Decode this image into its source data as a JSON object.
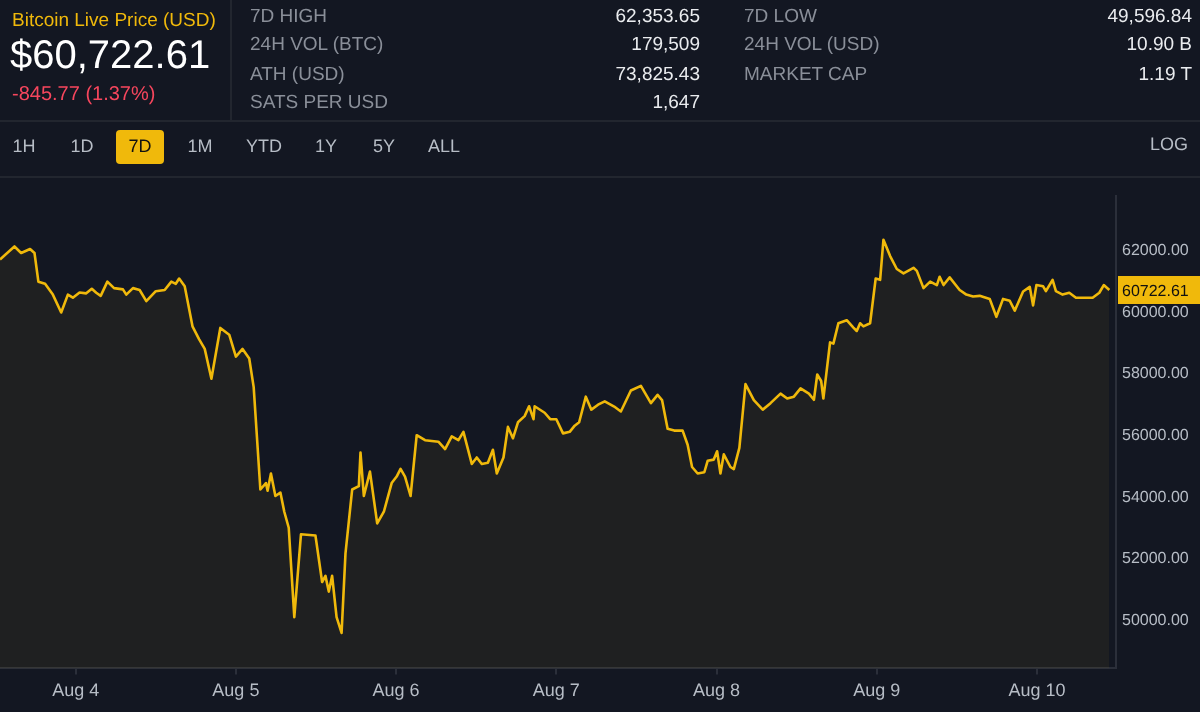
{
  "chart_data": {
    "type": "area",
    "title": "Bitcoin Live Price (USD)",
    "subtitle": "$60,722.61",
    "annotations": [
      "-845.77 (1.37%)",
      "7D HIGH",
      "62,353.65",
      "24H VOL (BTC)",
      "179,509",
      "ATH (USD)",
      "73,825.43",
      "SATS PER USD",
      "1,647",
      "7D LOW",
      "49,596.84",
      "24H VOL (USD)",
      "10.90 B",
      "MARKET CAP",
      "1.19 T",
      "1H",
      "1D",
      "7D",
      "1M",
      "YTD",
      "1Y",
      "5Y",
      "ALL",
      "LOG",
      {
        "text": "60722.61",
        "y": 60722.61
      }
    ],
    "x": [
      "--08-03T12:40",
      "--08-03T14:50",
      "--08-03T15:50",
      "--08-03T17:10",
      "--08-03T17:50",
      "--08-03T18:25",
      "--08-03T19:25",
      "--08-03T20:35",
      "--08-03T21:50",
      "--08-03T22:50",
      "--08-03T23:35",
      "--08-04T00:35",
      "--08-04T01:35",
      "--08-04T02:25",
      "--08-04T03:05",
      "--08-04T03:45",
      "--08-04T04:45",
      "--08-04T05:45",
      "--08-04T07:05",
      "--08-04T07:35",
      "--08-04T08:35",
      "--08-04T09:35",
      "--08-04T10:35",
      "--08-04T12:00",
      "--08-04T13:20",
      "--08-04T14:20",
      "--08-04T15:00",
      "--08-04T15:30",
      "--08-04T16:20",
      "--08-04T17:30",
      "--08-04T18:30",
      "--08-04T19:20",
      "--08-04T20:20",
      "--08-04T21:40",
      "--08-04T23:00",
      "--08-05T00:00",
      "--08-05T01:00",
      "--08-05T02:00",
      "--08-05T02:40",
      "--08-05T03:40",
      "--08-05T04:30",
      "--08-05T04:45",
      "--08-05T05:15",
      "--08-05T05:55",
      "--08-05T06:40",
      "--08-05T07:15",
      "--08-05T07:55",
      "--08-05T08:45",
      "--08-05T09:45",
      "--08-05T11:55",
      "--08-05T12:55",
      "--08-05T13:25",
      "--08-05T13:55",
      "--08-05T14:25",
      "--08-05T15:05",
      "--08-05T15:50",
      "--08-05T16:25",
      "--08-05T17:25",
      "--08-05T18:25",
      "--08-05T18:40",
      "--08-05T19:10",
      "--08-05T20:05",
      "--08-05T21:10",
      "--08-05T22:10",
      "--08-05T23:20",
      "--08-06T00:05",
      "--08-06T00:40",
      "--08-06T01:20",
      "--08-06T02:10",
      "--08-06T03:05",
      "--08-06T04:20",
      "--08-06T06:20",
      "--08-06T07:20",
      "--08-06T08:20",
      "--08-06T09:20",
      "--08-06T10:05",
      "--08-06T11:20",
      "--08-06T12:05",
      "--08-06T12:50",
      "--08-06T13:45",
      "--08-06T14:30",
      "--08-06T15:05",
      "--08-06T16:05",
      "--08-06T16:45",
      "--08-06T17:30",
      "--08-06T18:15",
      "--08-06T19:15",
      "--08-06T19:55",
      "--08-06T20:35",
      "--08-06T20:45",
      "--08-06T22:15",
      "--08-06T23:05",
      "--08-07T00:00",
      "--08-07T01:00",
      "--08-07T02:00",
      "--08-07T02:45",
      "--08-07T03:25",
      "--08-07T04:25",
      "--08-07T05:15",
      "--08-07T06:15",
      "--08-07T07:15",
      "--08-07T08:40",
      "--08-07T09:40",
      "--08-07T11:10",
      "--08-07T12:40",
      "--08-07T14:10",
      "--08-07T15:10",
      "--08-07T15:50",
      "--08-07T16:40",
      "--08-07T17:40",
      "--08-07T18:55",
      "--08-07T19:40",
      "--08-07T20:20",
      "--08-07T21:10",
      "--08-07T22:10",
      "--08-07T22:40",
      "--08-07T23:35",
      "--08-08T00:05",
      "--08-08T00:35",
      "--08-08T01:05",
      "--08-08T02:05",
      "--08-08T02:35",
      "--08-08T03:25",
      "--08-08T04:20",
      "--08-08T05:35",
      "--08-08T06:55",
      "--08-08T08:05",
      "--08-08T09:35",
      "--08-08T10:35",
      "--08-08T11:35",
      "--08-08T12:35",
      "--08-08T13:50",
      "--08-08T14:35",
      "--08-08T15:05",
      "--08-08T15:40",
      "--08-08T16:00",
      "--08-08T17:00",
      "--08-08T17:30",
      "--08-08T18:15",
      "--08-08T19:30",
      "--08-08T20:30",
      "--08-08T21:00",
      "--08-08T21:30",
      "--08-08T22:00",
      "--08-08T23:00",
      "--08-08T23:50",
      "--08-09T00:30",
      "--08-09T01:00",
      "--08-09T02:00",
      "--08-09T03:00",
      "--08-09T04:00",
      "--08-09T05:30",
      "--08-09T06:00",
      "--08-09T07:00",
      "--08-09T08:00",
      "--08-09T09:00",
      "--08-09T09:25",
      "--08-09T10:00",
      "--08-09T10:55",
      "--08-09T12:25",
      "--08-09T13:25",
      "--08-09T14:25",
      "--08-09T15:25",
      "--08-09T16:55",
      "--08-09T17:55",
      "--08-09T18:55",
      "--08-09T19:55",
      "--08-09T20:40",
      "--08-09T21:55",
      "--08-09T22:55",
      "--08-09T23:25",
      "--08-09T23:55",
      "--08-10T00:55",
      "--08-10T01:20",
      "--08-10T02:20",
      "--08-10T02:50",
      "--08-10T03:50",
      "--08-10T04:50",
      "--08-10T05:50",
      "--08-10T07:20",
      "--08-10T08:20",
      "--08-10T09:20",
      "--08-10T10:00",
      "--08-10T10:50"
    ],
    "series": [
      {
        "color": "#f0b90b",
        "values": [
          61710,
          62130,
          61920,
          62050,
          61920,
          60990,
          60920,
          60570,
          59990,
          60570,
          60470,
          60640,
          60610,
          60760,
          60630,
          60530,
          60990,
          60780,
          60740,
          60570,
          60780,
          60720,
          60360,
          60680,
          60720,
          60990,
          60920,
          61090,
          60840,
          59540,
          59120,
          58810,
          57840,
          59490,
          59270,
          58560,
          58810,
          58500,
          57570,
          54250,
          54460,
          54210,
          54770,
          54040,
          54150,
          53530,
          53010,
          50110,
          52800,
          52760,
          51250,
          51450,
          50940,
          51450,
          50110,
          49600,
          52180,
          54250,
          54360,
          55450,
          54040,
          54830,
          53150,
          53530,
          54460,
          54670,
          54920,
          54670,
          54040,
          56010,
          55850,
          55800,
          55560,
          55970,
          55850,
          56120,
          55080,
          55290,
          55080,
          55120,
          55540,
          54770,
          55290,
          56280,
          55910,
          56430,
          56630,
          56950,
          56530,
          56950,
          56740,
          56530,
          56530,
          56070,
          56120,
          56320,
          56430,
          57260,
          56840,
          57000,
          57110,
          56940,
          56780,
          57460,
          57610,
          57050,
          57320,
          57150,
          56220,
          56160,
          56160,
          55700,
          54980,
          54770,
          54810,
          55180,
          55220,
          55490,
          54770,
          55390,
          54980,
          54910,
          55600,
          57670,
          57150,
          56840,
          57050,
          57360,
          57200,
          57260,
          57530,
          57360,
          57160,
          57980,
          57770,
          57200,
          59020,
          58980,
          59640,
          59740,
          59500,
          59390,
          59640,
          59540,
          59640,
          61090,
          61050,
          62350,
          61820,
          61400,
          61260,
          61440,
          61340,
          60780,
          60990,
          60880,
          61150,
          60880,
          61130,
          60720,
          60570,
          60510,
          60530,
          60430,
          59850,
          60430,
          60370,
          60050,
          60670,
          60820,
          60220,
          60880,
          60840,
          60680,
          61050,
          60680,
          60570,
          60630,
          60470,
          60470,
          60470,
          60630,
          60880,
          60720
        ]
      }
    ],
    "xlim": [
      "--08-03T12:40",
      "--08-10T11:50"
    ],
    "xticks": [
      {
        "value": "--08-04",
        "label": "Aug 4"
      },
      {
        "value": "--08-05",
        "label": "Aug 5"
      },
      {
        "value": "--08-06",
        "label": "Aug 6"
      },
      {
        "value": "--08-07",
        "label": "Aug 7"
      },
      {
        "value": "--08-08",
        "label": "Aug 8"
      },
      {
        "value": "--08-09",
        "label": "Aug 9"
      },
      {
        "value": "--08-10",
        "label": "Aug 10"
      }
    ],
    "ylim": [
      48450,
      63780
    ],
    "yticks": [
      {
        "value": 50000,
        "label": "50000.00"
      },
      {
        "value": 52000,
        "label": "52000.00"
      },
      {
        "value": 54000,
        "label": "54000.00"
      },
      {
        "value": 56000,
        "label": "56000.00"
      },
      {
        "value": 58000,
        "label": "58000.00"
      },
      {
        "value": 60000,
        "label": "60000.00"
      },
      {
        "value": 62000,
        "label": "62000.00"
      }
    ]
  }
}
